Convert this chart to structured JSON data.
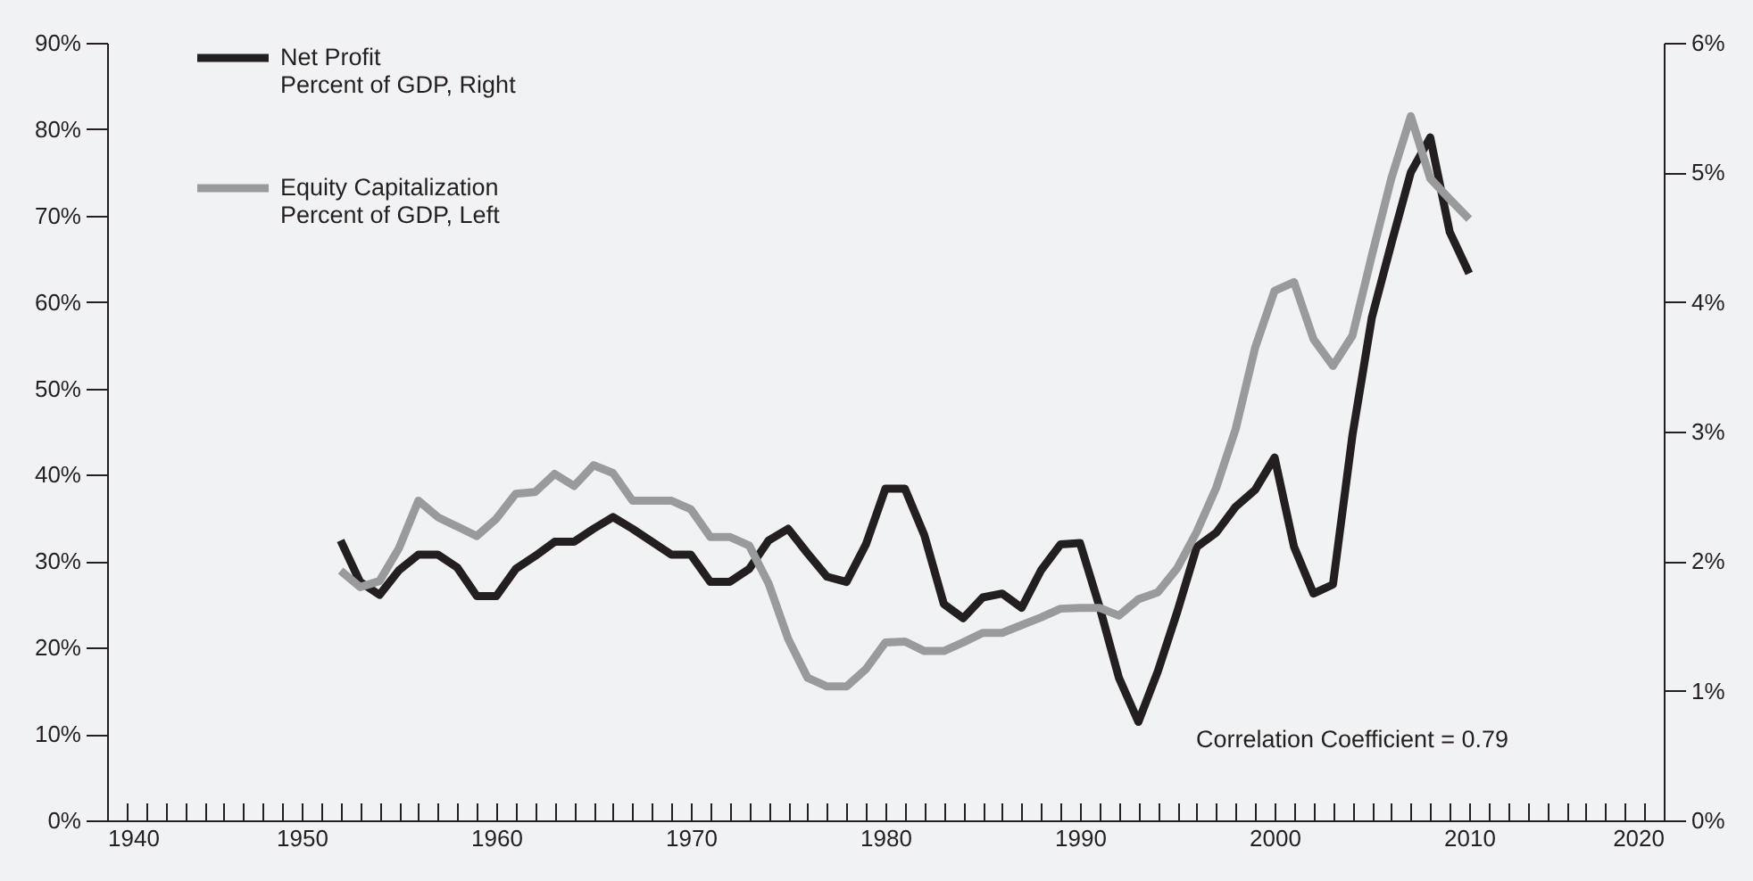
{
  "chart_data": {
    "type": "line",
    "x": [
      1952,
      1953,
      1954,
      1955,
      1956,
      1957,
      1958,
      1959,
      1960,
      1961,
      1962,
      1963,
      1964,
      1965,
      1966,
      1967,
      1968,
      1969,
      1970,
      1971,
      1972,
      1973,
      1974,
      1975,
      1976,
      1977,
      1978,
      1979,
      1980,
      1981,
      1982,
      1983,
      1984,
      1985,
      1986,
      1987,
      1988,
      1989,
      1990,
      1991,
      1992,
      1993,
      1994,
      1995,
      1996,
      1997,
      1998,
      1999,
      2000,
      2001,
      2002,
      2003,
      2004,
      2005,
      2006,
      2007,
      2008,
      2009,
      2010
    ],
    "series": [
      {
        "name": "Net Profit\nPercent of GDP, Right",
        "color": "#231f20",
        "axis": "y2",
        "values": [
          2.16,
          1.84,
          1.74,
          1.93,
          2.05,
          2.05,
          1.95,
          1.73,
          1.73,
          1.94,
          2.04,
          2.15,
          2.15,
          2.25,
          2.34,
          2.25,
          2.15,
          2.05,
          2.05,
          1.84,
          1.84,
          1.94,
          2.16,
          2.25,
          2.06,
          1.88,
          1.84,
          2.13,
          2.56,
          2.56,
          2.2,
          1.67,
          1.56,
          1.72,
          1.75,
          1.64,
          1.93,
          2.13,
          2.14,
          1.65,
          1.1,
          0.76,
          1.15,
          1.61,
          2.11,
          2.22,
          2.42,
          2.55,
          2.8,
          2.11,
          1.75,
          1.82,
          2.97,
          3.88,
          4.45,
          5.0,
          5.27,
          4.54,
          4.22
        ]
      },
      {
        "name": "Equity Capitalization\nPercent of GDP, Left",
        "color": "#999a9c",
        "values": [
          28.9,
          27.0,
          27.7,
          31.5,
          37.0,
          35.1,
          34.0,
          32.9,
          34.9,
          37.8,
          38.0,
          40.1,
          38.7,
          41.1,
          40.2,
          37.0,
          37.0,
          37.0,
          36.0,
          32.8,
          32.8,
          31.8,
          27.4,
          21.0,
          16.5,
          15.5,
          15.5,
          17.5,
          20.6,
          20.7,
          19.6,
          19.6,
          20.6,
          21.7,
          21.7,
          22.6,
          23.5,
          24.5,
          24.6,
          24.6,
          23.7,
          25.6,
          26.4,
          29.2,
          33.4,
          38.5,
          45.3,
          54.7,
          61.3,
          62.3,
          55.7,
          52.6,
          56.1,
          65.4,
          74.3,
          81.5,
          74.3,
          71.9,
          69.6
        ]
      }
    ],
    "xlim": [
      1940,
      2020
    ],
    "xticks": [
      1940,
      {
        "value": 1941,
        "label": null
      },
      {
        "value": 1942,
        "label": null
      },
      {
        "value": 1943,
        "label": null
      },
      {
        "value": 1944,
        "label": null
      },
      {
        "value": 1945,
        "label": null
      },
      {
        "value": 1946,
        "label": null
      },
      {
        "value": 1947,
        "label": null
      },
      {
        "value": 1948,
        "label": null
      },
      {
        "value": 1949,
        "label": null
      },
      1950,
      {
        "value": 1951,
        "label": null
      },
      {
        "value": 1952,
        "label": null
      },
      {
        "value": 1953,
        "label": null
      },
      {
        "value": 1954,
        "label": null
      },
      {
        "value": 1955,
        "label": null
      },
      {
        "value": 1956,
        "label": null
      },
      {
        "value": 1957,
        "label": null
      },
      {
        "value": 1958,
        "label": null
      },
      {
        "value": 1959,
        "label": null
      },
      1960,
      {
        "value": 1961,
        "label": null
      },
      {
        "value": 1962,
        "label": null
      },
      {
        "value": 1963,
        "label": null
      },
      {
        "value": 1964,
        "label": null
      },
      {
        "value": 1965,
        "label": null
      },
      {
        "value": 1966,
        "label": null
      },
      {
        "value": 1967,
        "label": null
      },
      {
        "value": 1968,
        "label": null
      },
      {
        "value": 1969,
        "label": null
      },
      1970,
      {
        "value": 1971,
        "label": null
      },
      {
        "value": 1972,
        "label": null
      },
      {
        "value": 1973,
        "label": null
      },
      {
        "value": 1974,
        "label": null
      },
      {
        "value": 1975,
        "label": null
      },
      {
        "value": 1976,
        "label": null
      },
      {
        "value": 1977,
        "label": null
      },
      {
        "value": 1978,
        "label": null
      },
      {
        "value": 1979,
        "label": null
      },
      1980,
      {
        "value": 1981,
        "label": null
      },
      {
        "value": 1982,
        "label": null
      },
      {
        "value": 1983,
        "label": null
      },
      {
        "value": 1984,
        "label": null
      },
      {
        "value": 1985,
        "label": null
      },
      {
        "value": 1986,
        "label": null
      },
      {
        "value": 1987,
        "label": null
      },
      {
        "value": 1988,
        "label": null
      },
      {
        "value": 1989,
        "label": null
      },
      1990,
      {
        "value": 1991,
        "label": null
      },
      {
        "value": 1992,
        "label": null
      },
      {
        "value": 1993,
        "label": null
      },
      {
        "value": 1994,
        "label": null
      },
      {
        "value": 1995,
        "label": null
      },
      {
        "value": 1996,
        "label": null
      },
      {
        "value": 1997,
        "label": null
      },
      {
        "value": 1998,
        "label": null
      },
      {
        "value": 1999,
        "label": null
      },
      2000,
      {
        "value": 2001,
        "label": null
      },
      {
        "value": 2002,
        "label": null
      },
      {
        "value": 2003,
        "label": null
      },
      {
        "value": 2004,
        "label": null
      },
      {
        "value": 2005,
        "label": null
      },
      {
        "value": 2006,
        "label": null
      },
      {
        "value": 2007,
        "label": null
      },
      {
        "value": 2008,
        "label": null
      },
      {
        "value": 2009,
        "label": null
      },
      2010,
      {
        "value": 2011,
        "label": null
      },
      {
        "value": 2012,
        "label": null
      },
      {
        "value": 2013,
        "label": null
      },
      {
        "value": 2014,
        "label": null
      },
      {
        "value": 2015,
        "label": null
      },
      {
        "value": 2016,
        "label": null
      },
      {
        "value": 2017,
        "label": null
      },
      {
        "value": 2018,
        "label": null
      },
      {
        "value": 2019,
        "label": null
      },
      2020
    ],
    "ylim": [
      0,
      90
    ],
    "yticks": [
      {
        "value": 0,
        "label": "0%"
      },
      {
        "value": 10,
        "label": "10%"
      },
      {
        "value": 20,
        "label": "20%"
      },
      {
        "value": 30,
        "label": "30%"
      },
      {
        "value": 40,
        "label": "40%"
      },
      {
        "value": 50,
        "label": "50%"
      },
      {
        "value": 60,
        "label": "60%"
      },
      {
        "value": 70,
        "label": "70%"
      },
      {
        "value": 80,
        "label": "80%"
      },
      {
        "value": 90,
        "label": "90%"
      }
    ],
    "y2lim": [
      0,
      6
    ],
    "y2ticks": [
      {
        "value": 0,
        "label": "0%"
      },
      {
        "value": 1,
        "label": "1%"
      },
      {
        "value": 2,
        "label": "2%"
      },
      {
        "value": 3,
        "label": "3%"
      },
      {
        "value": 4,
        "label": "4%"
      },
      {
        "value": 5,
        "label": "5%"
      },
      {
        "value": 6,
        "label": "6%"
      }
    ],
    "annotations": [
      "Correlation Coefficient = 0.79"
    ],
    "legend": "top left",
    "grid": false,
    "line_style": "solid",
    "marker": "none"
  }
}
